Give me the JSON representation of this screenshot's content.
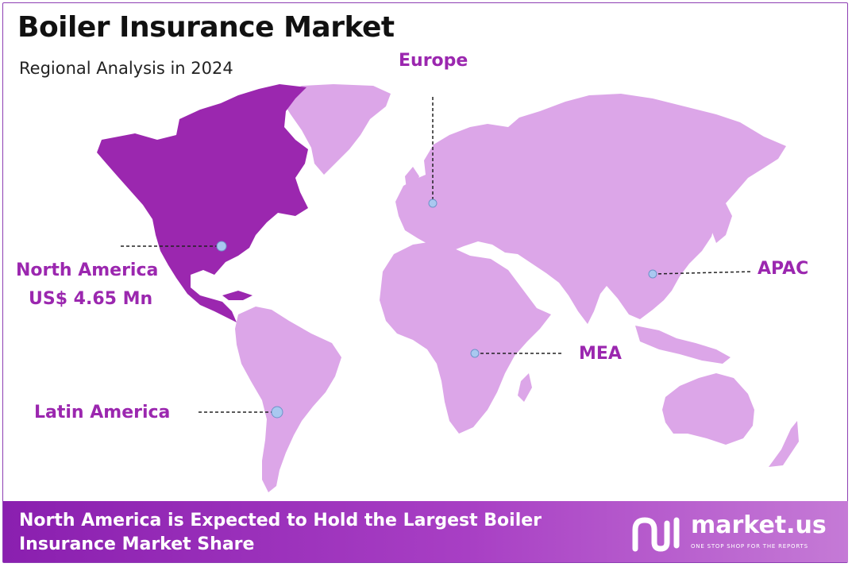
{
  "header": {
    "title": "Boiler Insurance Market",
    "subtitle": "Regional Analysis in 2024"
  },
  "map": {
    "highlight_color": "#9b27af",
    "land_color": "#dca6e8",
    "marker_color": "#a9c8f0",
    "regions": [
      {
        "name": "North America",
        "value": "US$ 4.65 Mn",
        "highlighted": true
      },
      {
        "name": "Europe",
        "highlighted": false
      },
      {
        "name": "APAC",
        "highlighted": false
      },
      {
        "name": "MEA",
        "highlighted": false
      },
      {
        "name": "Latin America",
        "highlighted": false
      }
    ]
  },
  "banner": {
    "headline": "North America is Expected to Hold the Largest Boiler Insurance Market Share",
    "brand": "market.us",
    "tagline": "ONE STOP SHOP FOR THE REPORTS"
  }
}
